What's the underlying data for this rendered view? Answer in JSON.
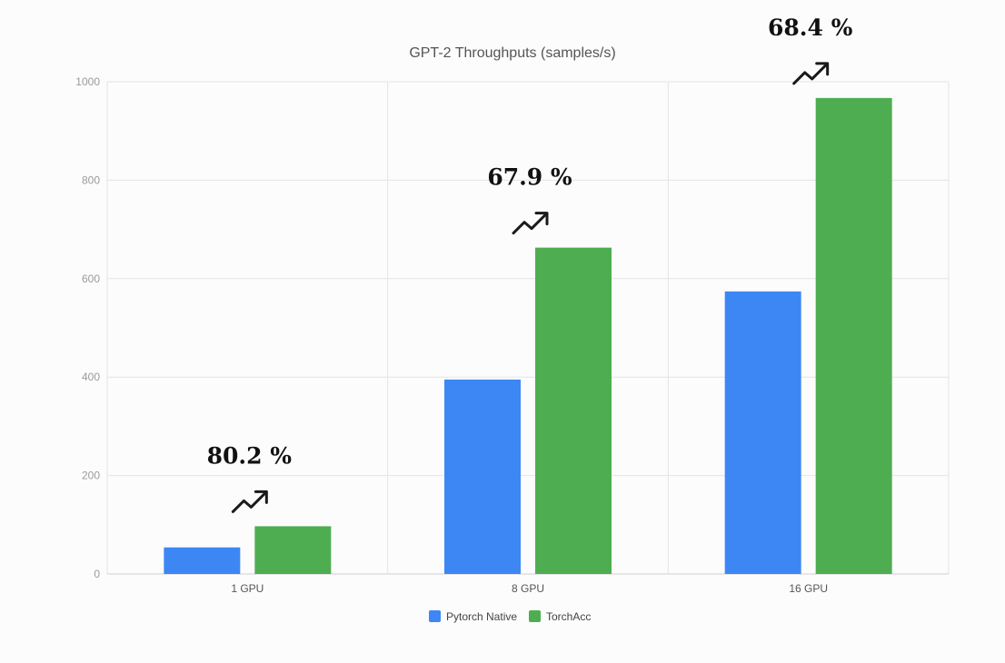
{
  "chart_data": {
    "type": "bar",
    "title": "GPT-2 Throughputs (samples/s)",
    "categories": [
      "1 GPU",
      "8 GPU",
      "16 GPU"
    ],
    "series": [
      {
        "name": "Pytorch Native",
        "color": "#3d87f5",
        "values": [
          54,
          395,
          574
        ]
      },
      {
        "name": "TorchAcc",
        "color": "#4fad51",
        "values": [
          97,
          663,
          967
        ]
      }
    ],
    "yticks": [
      0,
      200,
      400,
      600,
      800,
      1000
    ],
    "ylim": [
      0,
      1000
    ],
    "grid": true,
    "legend_position": "bottom-center",
    "annotations": [
      {
        "category": "1 GPU",
        "text": "80.2 %",
        "icon": "trending-up-icon"
      },
      {
        "category": "8 GPU",
        "text": "67.9 %",
        "icon": "trending-up-icon"
      },
      {
        "category": "16 GPU",
        "text": "68.4 %",
        "icon": "trending-up-icon"
      }
    ]
  }
}
